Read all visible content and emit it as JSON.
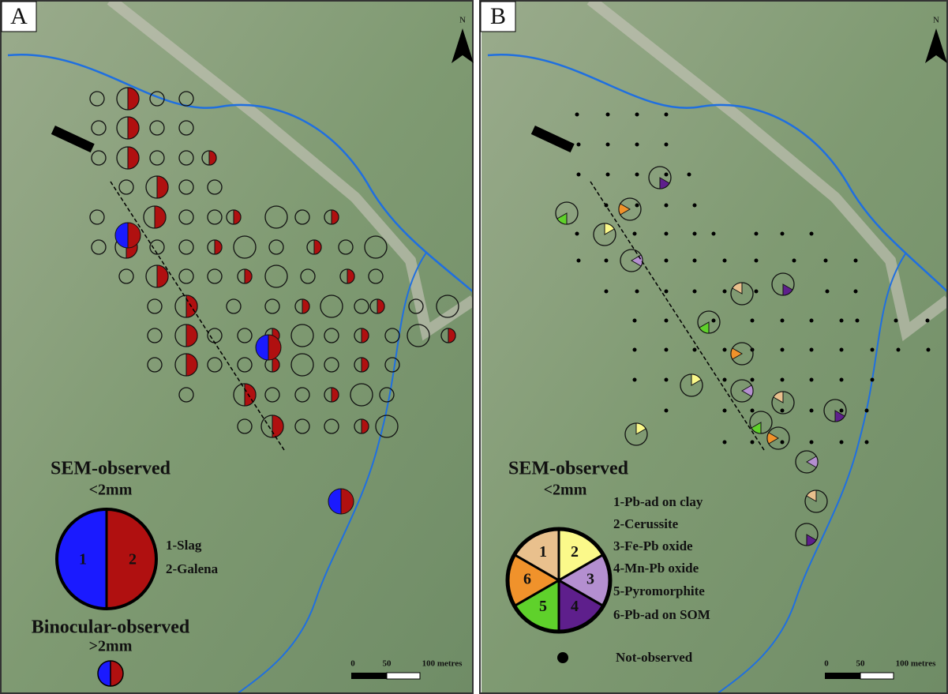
{
  "panels": [
    {
      "label": "A",
      "north": "N",
      "legend": {
        "title": "SEM-observed",
        "size": "<2mm",
        "pie_labels": [
          "1",
          "2"
        ],
        "items": [
          "1-Slag",
          "2-Galena"
        ],
        "title2": "Binocular-observed",
        "size2": ">2mm"
      },
      "scale": [
        "0",
        "50",
        "100 metres"
      ]
    },
    {
      "label": "B",
      "north": "N",
      "legend": {
        "title": "SEM-observed",
        "size": "<2mm",
        "pie_labels": [
          "1",
          "2",
          "3",
          "4",
          "5",
          "6"
        ],
        "items": [
          "1-Pb-ad on clay",
          "2-Cerussite",
          "3-Fe-Pb oxide",
          "4-Mn-Pb oxide",
          "5-Pyromorphite",
          "6-Pb-ad on SOM"
        ],
        "not_observed": "Not-observed"
      },
      "scale": [
        "0",
        "50",
        "100 metres"
      ]
    }
  ]
}
